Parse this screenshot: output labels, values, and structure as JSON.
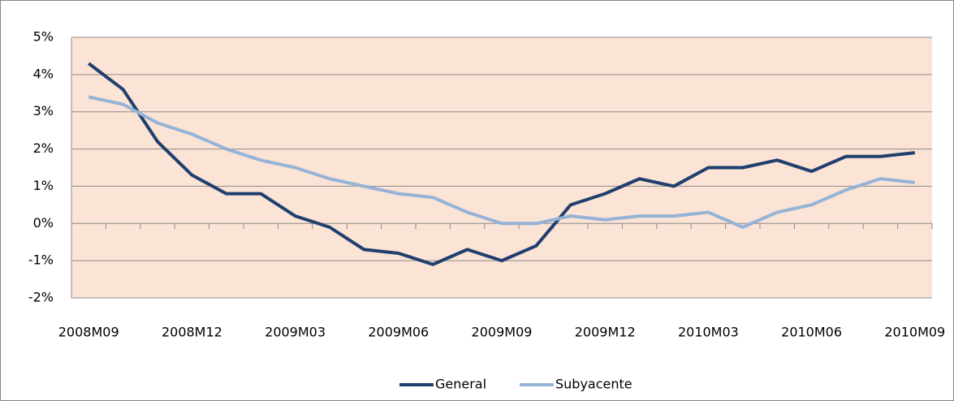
{
  "chart_data": {
    "type": "line",
    "categories": [
      "2008M09",
      null,
      null,
      "2008M12",
      null,
      null,
      "2009M03",
      null,
      null,
      "2009M06",
      null,
      null,
      "2009M09",
      null,
      null,
      "2009M12",
      null,
      null,
      "2010M03",
      null,
      null,
      "2010M06",
      null,
      null,
      "2010M09"
    ],
    "series": [
      {
        "name": "General",
        "color": "#1f3f6e",
        "values": [
          4.3,
          3.6,
          2.2,
          1.3,
          0.8,
          0.8,
          0.2,
          -0.1,
          -0.7,
          -0.8,
          -1.1,
          -0.7,
          -1.0,
          -0.6,
          0.5,
          0.8,
          1.2,
          1.0,
          1.5,
          1.5,
          1.7,
          1.4,
          1.8,
          1.8,
          1.9
        ]
      },
      {
        "name": "Subyacente",
        "color": "#95b3d7",
        "values": [
          3.4,
          3.2,
          2.7,
          2.4,
          2.0,
          1.7,
          1.5,
          1.2,
          1.0,
          0.8,
          0.7,
          0.3,
          0.0,
          0.0,
          0.2,
          0.1,
          0.2,
          0.2,
          0.3,
          -0.1,
          0.3,
          0.5,
          0.9,
          1.2,
          1.1
        ]
      }
    ],
    "ylim": [
      -2,
      5
    ],
    "yticks": [
      {
        "value": -2,
        "label": "-2%"
      },
      {
        "value": -1,
        "label": "-1%"
      },
      {
        "value": 0,
        "label": "0%"
      },
      {
        "value": 1,
        "label": "1%"
      },
      {
        "value": 2,
        "label": "2%"
      },
      {
        "value": 3,
        "label": "3%"
      },
      {
        "value": 4,
        "label": "4%"
      },
      {
        "value": 5,
        "label": "5%"
      }
    ],
    "grid": true,
    "legend": "bottom",
    "background": "#fbe3d5"
  }
}
